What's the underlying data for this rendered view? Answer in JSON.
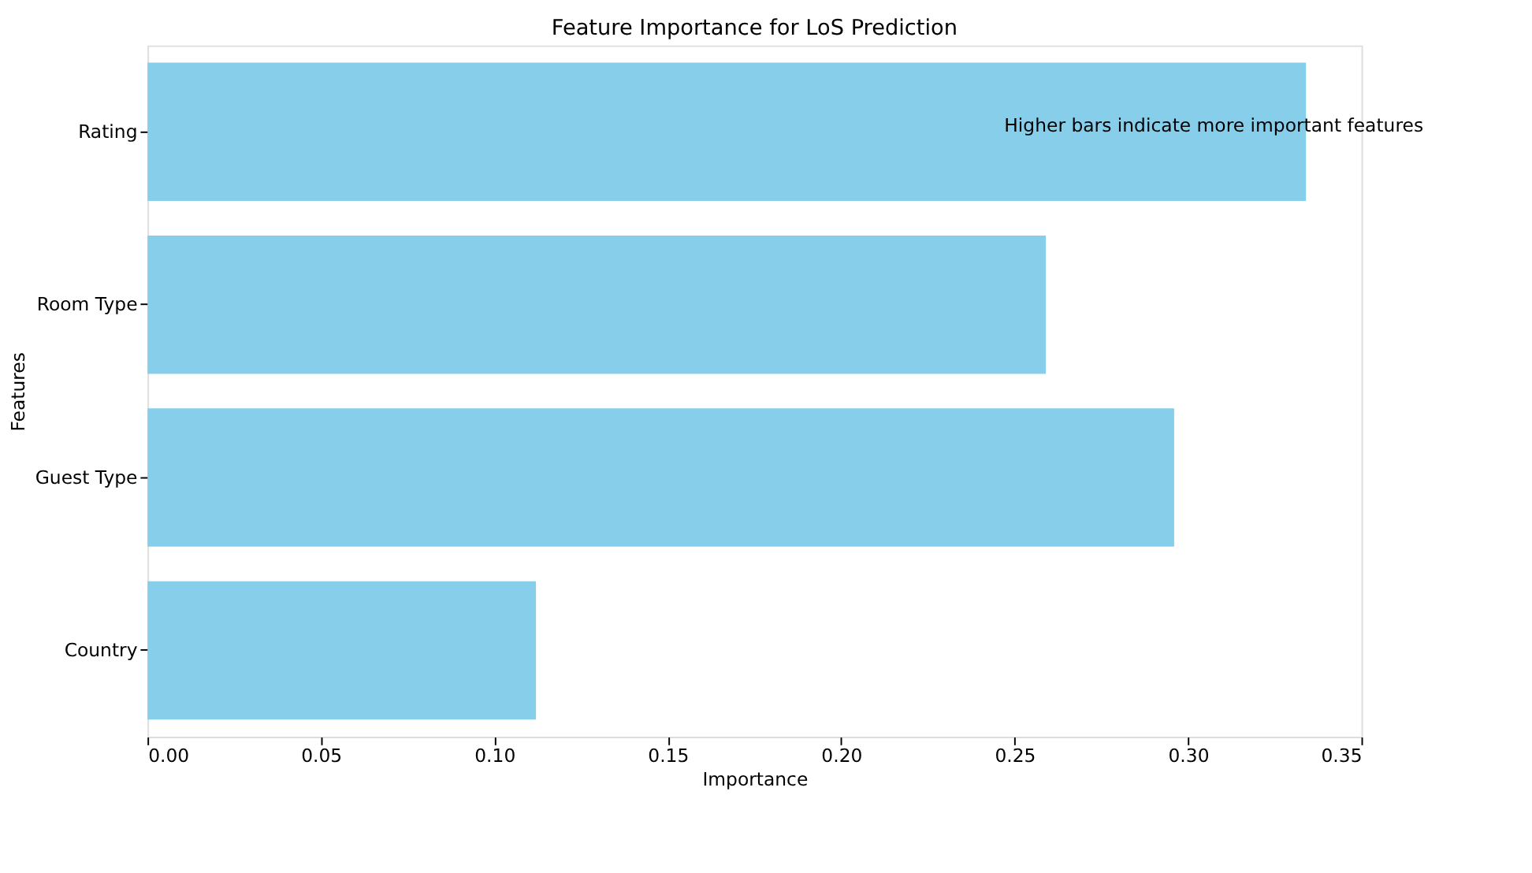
{
  "chart_data": {
    "type": "bar",
    "orientation": "horizontal",
    "title": "Feature Importance for LoS Prediction",
    "xlabel": "Importance",
    "ylabel": "Features",
    "categories": [
      "Rating",
      "Room Type",
      "Guest Type",
      "Country"
    ],
    "values": [
      0.334,
      0.259,
      0.296,
      0.112
    ],
    "color": "#87ceeb",
    "xlim": [
      0,
      0.35
    ],
    "xticks": [
      {
        "value": 0,
        "label": "0.00"
      },
      0.05,
      {
        "value": 0.1,
        "label": "0.10"
      },
      0.15,
      {
        "value": 0.2,
        "label": "0.20"
      },
      0.25,
      {
        "value": 0.3,
        "label": "0.30"
      },
      0.35
    ],
    "annotations": [
      {
        "text": "Higher bars indicate more important features",
        "x": 0.334,
        "y": "Rating"
      }
    ]
  }
}
